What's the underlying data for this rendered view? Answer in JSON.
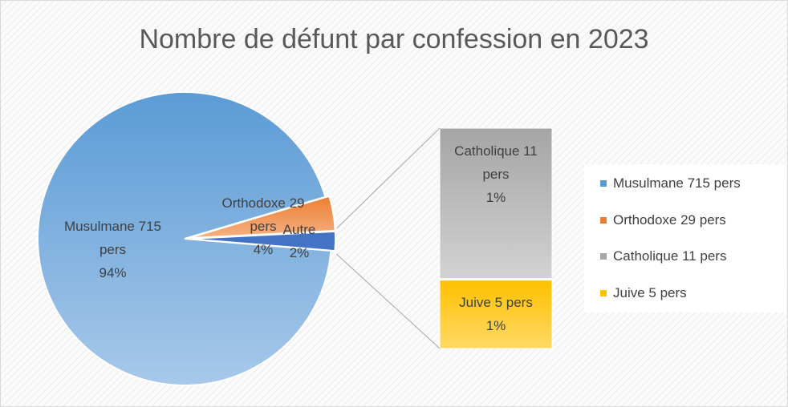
{
  "chart_data": {
    "type": "bar-of-pie",
    "title": "Nombre de défunt par confession en 2023",
    "categories": [
      "Musulmane 715 pers",
      "Orthodoxe 29 pers",
      "Catholique 11 pers",
      "Juive 5 pers"
    ],
    "values": [
      715,
      29,
      11,
      5
    ],
    "percent_labels": [
      "94%",
      "4%",
      "1%",
      "1%"
    ],
    "colors": [
      "#5b9bd5",
      "#ed7d31",
      "#a5a5a5",
      "#ffc000"
    ],
    "other": {
      "name": "Autre",
      "label": "2%",
      "color": "#4472c4"
    },
    "legend": "right"
  }
}
